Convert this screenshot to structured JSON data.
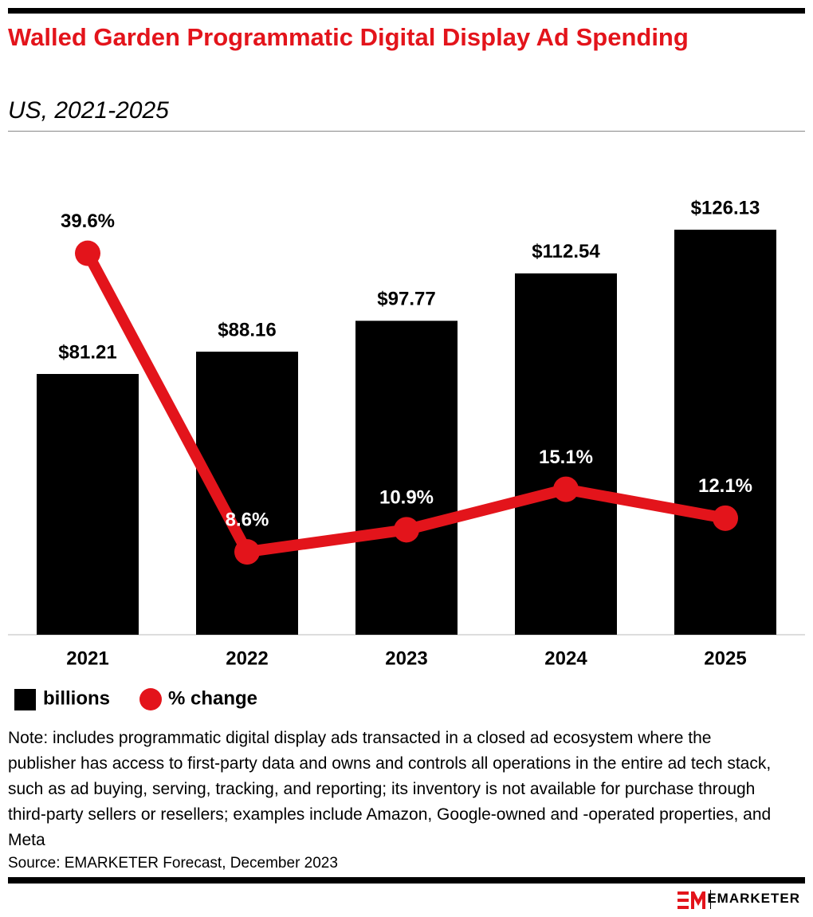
{
  "chart_data": {
    "type": "bar",
    "title": "Walled Garden Programmatic Digital Display Ad Spending",
    "subtitle": "US, 2021-2025",
    "categories": [
      "2021",
      "2022",
      "2023",
      "2024",
      "2025"
    ],
    "series": [
      {
        "name": "billions",
        "type": "bar",
        "color": "#000000",
        "values": [
          81.21,
          88.16,
          97.77,
          112.54,
          126.13
        ],
        "value_labels": [
          "$81.21",
          "$88.16",
          "$97.77",
          "$112.54",
          "$126.13"
        ]
      },
      {
        "name": "% change",
        "type": "line",
        "axis": "y2",
        "color": "#e3141b",
        "values": [
          39.6,
          8.6,
          10.9,
          15.1,
          12.1
        ],
        "value_labels": [
          "39.6%",
          "8.6%",
          "10.9%",
          "15.1%",
          "12.1%"
        ]
      }
    ],
    "ylim": [
      0,
      150
    ],
    "y2lim": [
      0,
      50
    ],
    "legend": "bottom-left",
    "note": "Note: includes programmatic digital display ads transacted in a closed ad ecosystem where the publisher has access to first-party data and owns and controls all operations in the entire ad tech stack, such as ad buying, serving, tracking, and reporting; its inventory is not available for purchase through third-party sellers or resellers; examples include Amazon, Google-owned and -operated properties, and Meta",
    "source": "Source: EMARKETER Forecast, December 2023",
    "brand": "EMARKETER"
  }
}
